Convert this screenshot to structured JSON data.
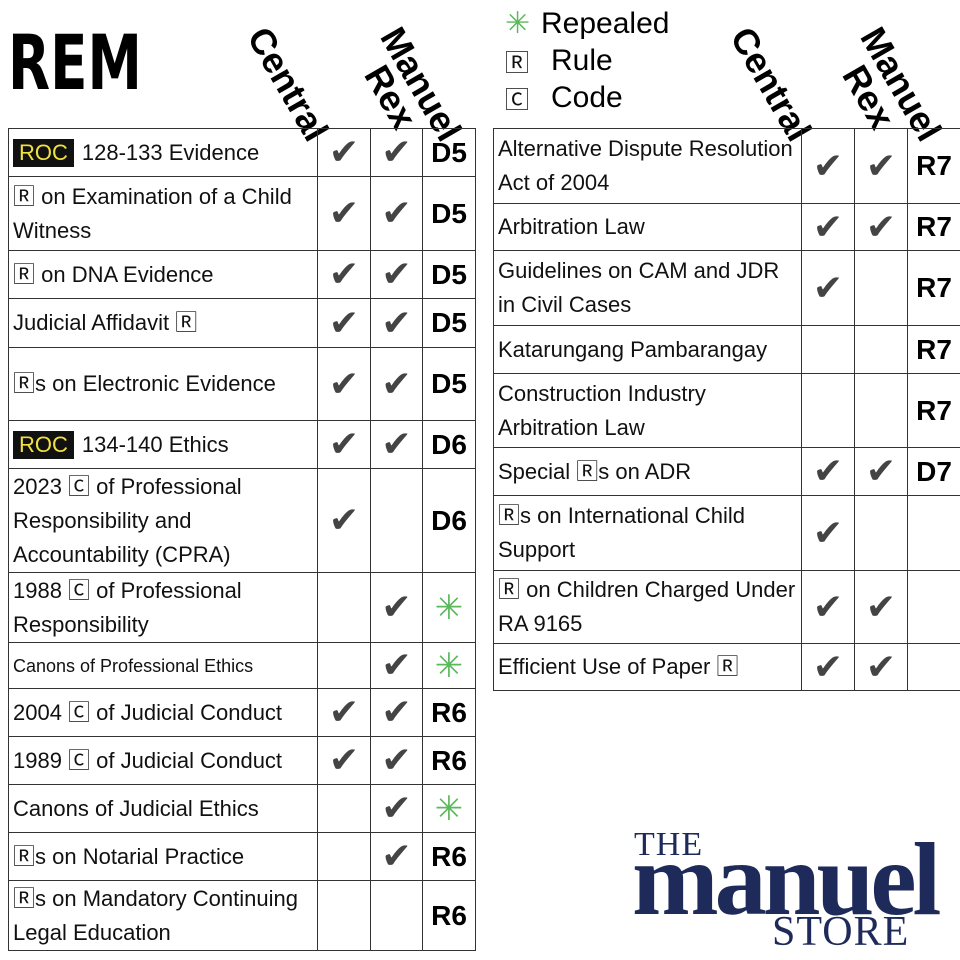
{
  "header": {
    "title": "REM"
  },
  "legend": [
    {
      "symbol": "✳",
      "label": "Repealed"
    },
    {
      "symbol": "🅁",
      "label": "Rule"
    },
    {
      "symbol": "🄲",
      "label": "Code"
    }
  ],
  "tables": [
    {
      "columns": [
        "Central",
        "Rex",
        "Manuel"
      ],
      "rows": [
        {
          "badge": "ROC",
          "title": "128-133 Evidence",
          "central": "✔",
          "rex": "✔",
          "manuel": "D5"
        },
        {
          "title": "🅁 on Examination of a Child Witness",
          "central": "✔",
          "rex": "✔",
          "manuel": "D5"
        },
        {
          "title": "🅁 on DNA Evidence",
          "central": "✔",
          "rex": "✔",
          "manuel": "D5"
        },
        {
          "title": "Judicial Affidavit 🅁",
          "central": "✔",
          "rex": "✔",
          "manuel": "D5"
        },
        {
          "title": "🅁s on Electronic Evidence",
          "central": "✔",
          "rex": "✔",
          "manuel": "D5"
        },
        {
          "badge": "ROC",
          "title": "134-140 Ethics",
          "central": "✔",
          "rex": "✔",
          "manuel": "D6"
        },
        {
          "title": "2023 🄲 of Professional Responsibility and Accountability (CPRA)",
          "central": "✔",
          "rex": null,
          "manuel": "D6"
        },
        {
          "title": "1988 🄲 of Professional Responsibility",
          "central": null,
          "rex": "✔",
          "manuel": "✳"
        },
        {
          "title": "Canons of Professional Ethics",
          "central": null,
          "rex": "✔",
          "manuel": "✳"
        },
        {
          "title": "2004 🄲 of Judicial Conduct",
          "central": "✔",
          "rex": "✔",
          "manuel": "R6"
        },
        {
          "title": "1989 🄲 of Judicial Conduct",
          "central": "✔",
          "rex": "✔",
          "manuel": "R6"
        },
        {
          "title": "Canons of Judicial Ethics",
          "central": null,
          "rex": "✔",
          "manuel": "✳"
        },
        {
          "title": "🅁s on Notarial Practice",
          "central": null,
          "rex": "✔",
          "manuel": "R6"
        },
        {
          "title": "🅁s on Mandatory Continuing Legal Education",
          "central": null,
          "rex": null,
          "manuel": "R6"
        }
      ]
    },
    {
      "columns": [
        "Central",
        "Rex",
        "Manuel"
      ],
      "rows": [
        {
          "title": "Alternative Dispute Resolution Act of 2004",
          "central": "✔",
          "rex": "✔",
          "manuel": "R7"
        },
        {
          "title": "Arbitration Law",
          "central": "✔",
          "rex": "✔",
          "manuel": "R7"
        },
        {
          "title": "Guidelines on CAM and JDR in Civil Cases",
          "central": "✔",
          "rex": null,
          "manuel": "R7"
        },
        {
          "title": "Katarungang Pambarangay",
          "central": null,
          "rex": null,
          "manuel": "R7"
        },
        {
          "title": "Construction Industry Arbitration Law",
          "central": null,
          "rex": null,
          "manuel": "R7"
        },
        {
          "title": "Special 🅁s on ADR",
          "central": "✔",
          "rex": "✔",
          "manuel": "D7"
        },
        {
          "title": "🅁s on International Child Support",
          "central": "✔",
          "rex": null,
          "manuel": null
        },
        {
          "title": "🅁 on Children Charged Under RA 9165",
          "central": "✔",
          "rex": "✔",
          "manuel": null
        },
        {
          "title": "Efficient Use of Paper 🅁",
          "central": "✔",
          "rex": "✔",
          "manuel": null
        }
      ]
    }
  ],
  "logo": {
    "top": "THE",
    "middle": "manuel",
    "bottom": "STORE"
  }
}
